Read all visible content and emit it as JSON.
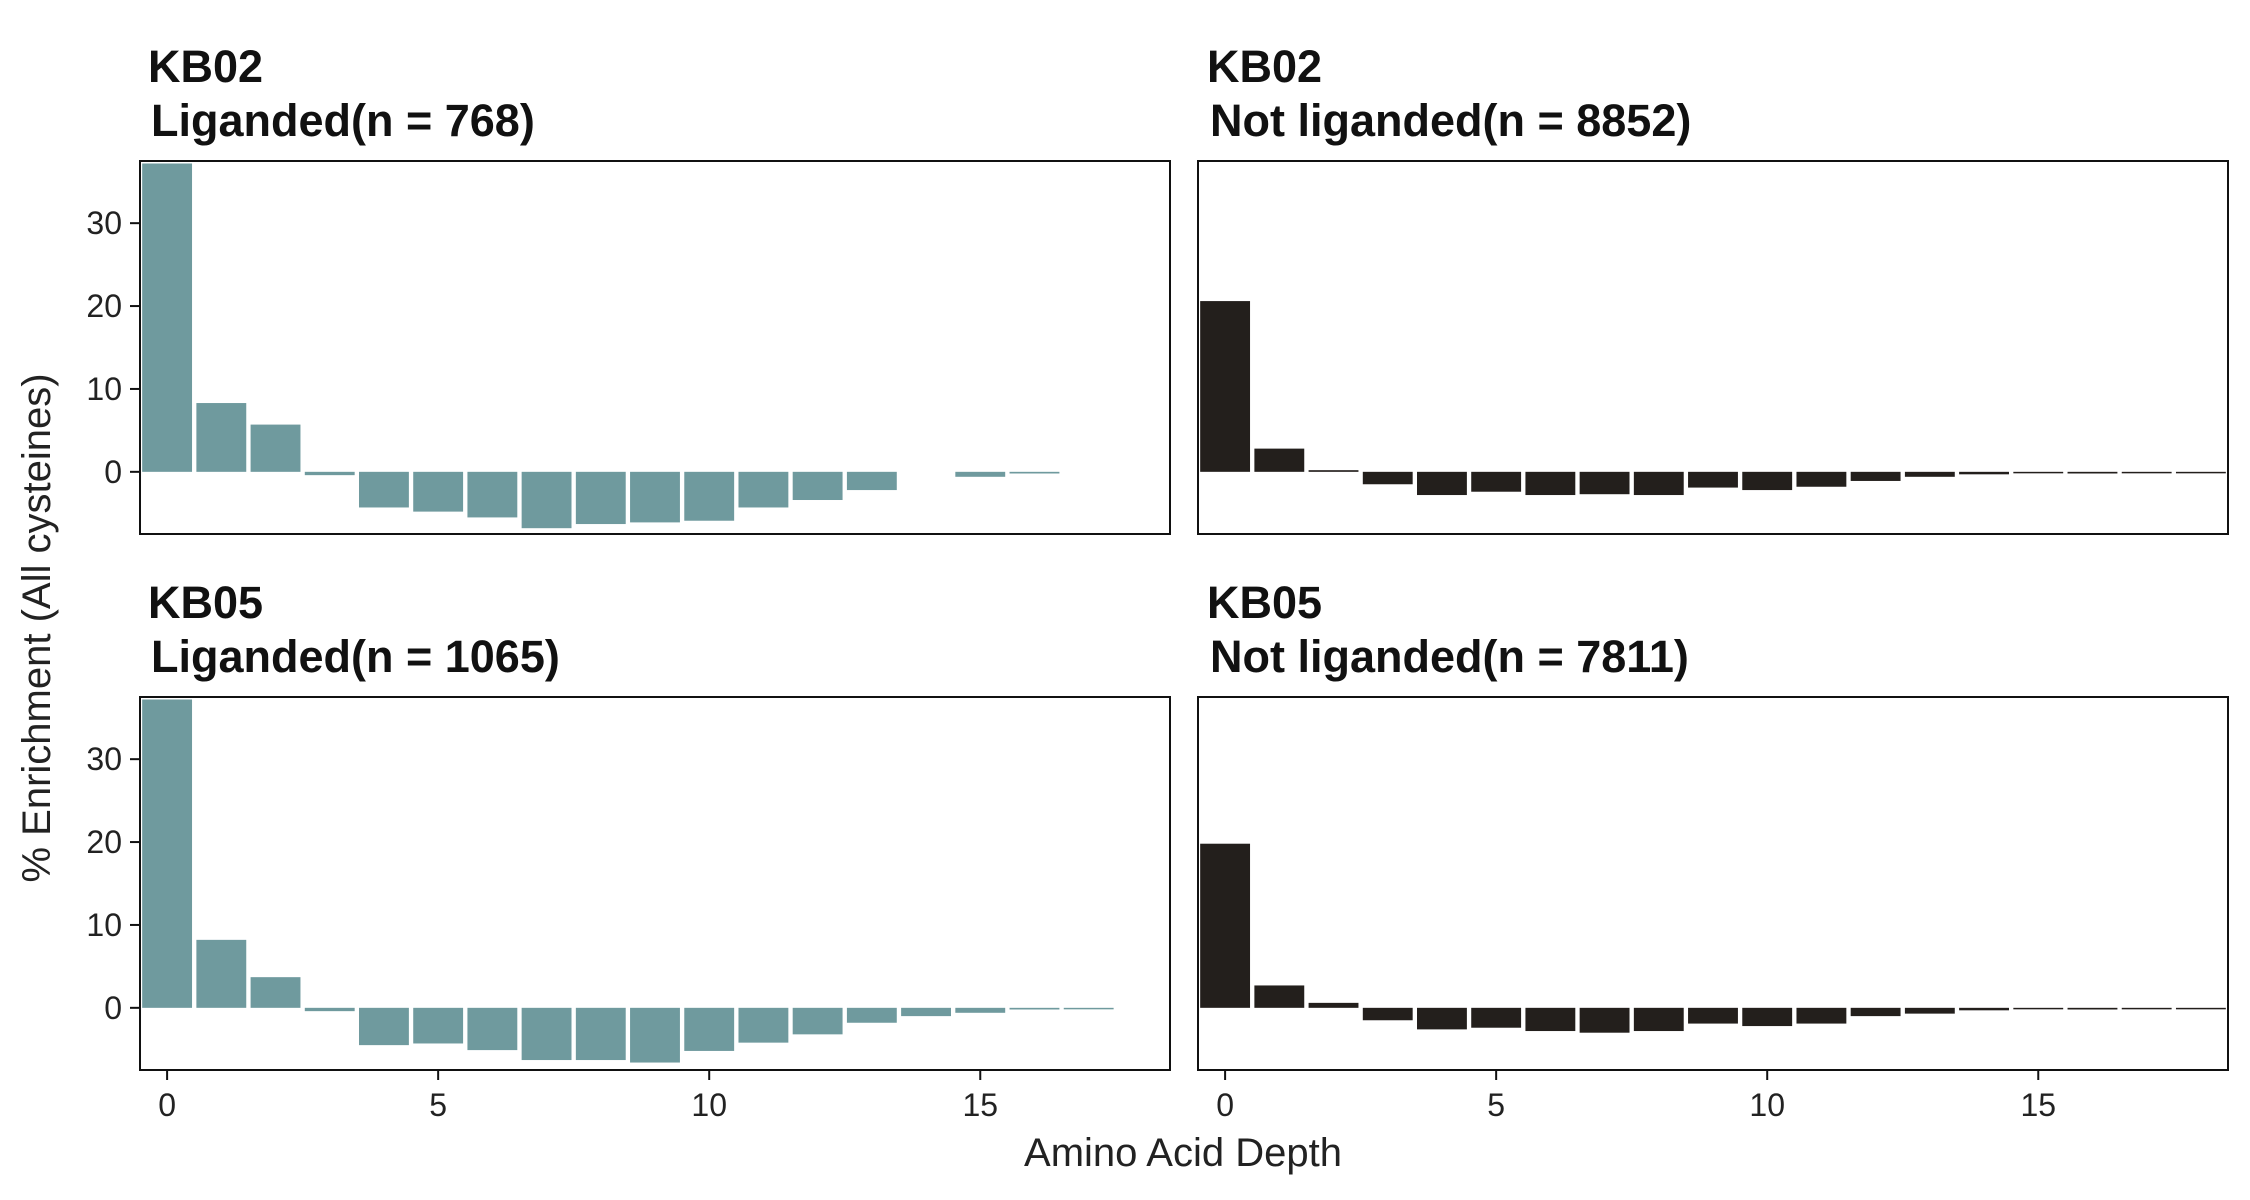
{
  "figure": {
    "xlabel": "Amino Acid Depth",
    "ylabel": "% Enrichment (All cysteines)"
  },
  "colors": {
    "liganded": "#6f9a9e",
    "not_liganded": "#231f1c",
    "frame": "#111111"
  },
  "chart_data": [
    {
      "type": "bar",
      "title_line1": "KB02",
      "title_line2": "Liganded(n = 768)",
      "color": "#6f9a9e",
      "x": [
        0,
        1,
        2,
        3,
        4,
        5,
        6,
        7,
        8,
        9,
        10,
        11,
        12,
        13,
        14,
        15,
        16,
        17
      ],
      "values": [
        37.2,
        8.3,
        5.7,
        -0.4,
        -4.3,
        -4.8,
        -5.5,
        -6.8,
        -6.3,
        -6.1,
        -5.9,
        -4.3,
        -3.4,
        -2.2,
        0,
        -0.6,
        -0.2,
        0
      ],
      "xlim": [
        -0.5,
        18.5
      ],
      "ylim": [
        -7.5,
        37.5
      ],
      "xticks": [
        0,
        5,
        10,
        15
      ],
      "yticks": [
        0,
        10,
        20,
        30
      ]
    },
    {
      "type": "bar",
      "title_line1": "KB02",
      "title_line2": "Not liganded(n = 8852)",
      "color": "#231f1c",
      "x": [
        0,
        1,
        2,
        3,
        4,
        5,
        6,
        7,
        8,
        9,
        10,
        11,
        12,
        13,
        14,
        15,
        16,
        17,
        18
      ],
      "values": [
        20.6,
        2.8,
        0.2,
        -1.5,
        -2.8,
        -2.4,
        -2.8,
        -2.7,
        -2.8,
        -1.9,
        -2.2,
        -1.8,
        -1.1,
        -0.6,
        -0.3,
        -0.15,
        -0.2,
        -0.1,
        -0.05
      ],
      "xlim": [
        -0.5,
        18.5
      ],
      "ylim": [
        -7.5,
        37.5
      ],
      "xticks": [
        0,
        5,
        10,
        15
      ],
      "yticks": [
        0,
        10,
        20,
        30
      ]
    },
    {
      "type": "bar",
      "title_line1": "KB05",
      "title_line2": "Liganded(n = 1065)",
      "color": "#6f9a9e",
      "x": [
        0,
        1,
        2,
        3,
        4,
        5,
        6,
        7,
        8,
        9,
        10,
        11,
        12,
        13,
        14,
        15,
        16,
        17
      ],
      "values": [
        37.2,
        8.2,
        3.7,
        -0.4,
        -4.5,
        -4.3,
        -5.1,
        -6.3,
        -6.3,
        -6.6,
        -5.2,
        -4.2,
        -3.2,
        -1.8,
        -1.0,
        -0.6,
        -0.2,
        -0.1
      ],
      "xlim": [
        -0.5,
        18.5
      ],
      "ylim": [
        -7.5,
        37.5
      ],
      "xticks": [
        0,
        5,
        10,
        15
      ],
      "yticks": [
        0,
        10,
        20,
        30
      ]
    },
    {
      "type": "bar",
      "title_line1": "KB05",
      "title_line2": "Not liganded(n = 7811)",
      "color": "#231f1c",
      "x": [
        0,
        1,
        2,
        3,
        4,
        5,
        6,
        7,
        8,
        9,
        10,
        11,
        12,
        13,
        14,
        15,
        16,
        17,
        18
      ],
      "values": [
        19.8,
        2.7,
        0.6,
        -1.5,
        -2.6,
        -2.4,
        -2.8,
        -3.0,
        -2.8,
        -1.9,
        -2.2,
        -1.9,
        -1.0,
        -0.7,
        -0.3,
        -0.1,
        -0.2,
        -0.1,
        -0.05
      ],
      "xlim": [
        -0.5,
        18.5
      ],
      "ylim": [
        -7.5,
        37.5
      ],
      "xticks": [
        0,
        5,
        10,
        15
      ],
      "yticks": [
        0,
        10,
        20,
        30
      ]
    }
  ]
}
